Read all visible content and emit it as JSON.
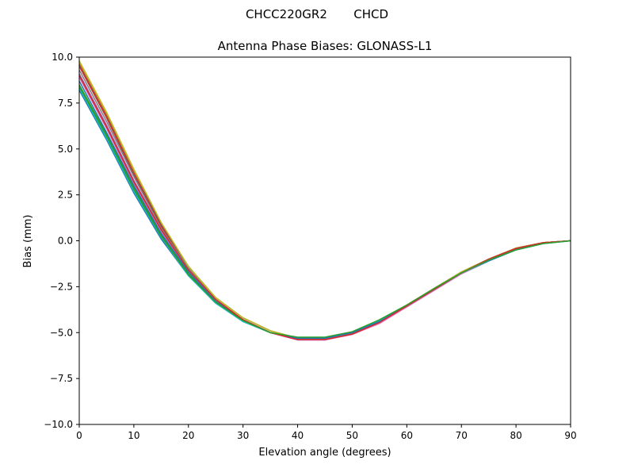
{
  "figure": {
    "suptitle": "CHCC220GR2       CHCD"
  },
  "chart_data": {
    "type": "line",
    "title": "Antenna Phase Biases: GLONASS-L1",
    "xlabel": "Elevation angle (degrees)",
    "ylabel": "Bias (mm)",
    "xlim": [
      0,
      90
    ],
    "ylim": [
      -10,
      10
    ],
    "xticks": [
      0,
      10,
      20,
      30,
      40,
      50,
      60,
      70,
      80,
      90
    ],
    "yticks": [
      -10.0,
      -7.5,
      -5.0,
      -2.5,
      0.0,
      2.5,
      5.0,
      7.5,
      10.0
    ],
    "ytick_labels": [
      "−10.0",
      "−7.5",
      "−5.0",
      "−2.5",
      "0.0",
      "2.5",
      "5.0",
      "7.5",
      "10.0"
    ],
    "grid": false,
    "x": [
      0,
      5,
      10,
      15,
      20,
      25,
      30,
      35,
      40,
      45,
      50,
      55,
      60,
      65,
      70,
      75,
      80,
      85,
      90
    ],
    "series": [
      {
        "color": "#1f77b4",
        "values": [
          8.2,
          5.5,
          2.6,
          0.1,
          -1.9,
          -3.4,
          -4.4,
          -5.0,
          -5.3,
          -5.3,
          -5.0,
          -4.4,
          -3.6,
          -2.7,
          -1.8,
          -1.1,
          -0.5,
          -0.15,
          0.0
        ]
      },
      {
        "color": "#ff7f0e",
        "values": [
          9.7,
          6.9,
          3.8,
          0.9,
          -1.4,
          -3.1,
          -4.2,
          -4.9,
          -5.3,
          -5.3,
          -5.0,
          -4.4,
          -3.5,
          -2.6,
          -1.7,
          -1.0,
          -0.4,
          -0.1,
          0.0
        ]
      },
      {
        "color": "#2ca02c",
        "values": [
          8.5,
          5.8,
          2.9,
          0.3,
          -1.8,
          -3.3,
          -4.3,
          -5.0,
          -5.3,
          -5.3,
          -5.0,
          -4.3,
          -3.5,
          -2.6,
          -1.7,
          -1.0,
          -0.45,
          -0.1,
          0.0
        ]
      },
      {
        "color": "#d62728",
        "values": [
          9.5,
          6.7,
          3.6,
          0.8,
          -1.5,
          -3.2,
          -4.3,
          -5.0,
          -5.35,
          -5.35,
          -5.05,
          -4.4,
          -3.5,
          -2.6,
          -1.7,
          -1.0,
          -0.4,
          -0.1,
          0.0
        ]
      },
      {
        "color": "#9467bd",
        "values": [
          9.1,
          6.3,
          3.3,
          0.6,
          -1.6,
          -3.2,
          -4.3,
          -5.0,
          -5.4,
          -5.4,
          -5.1,
          -4.5,
          -3.6,
          -2.7,
          -1.8,
          -1.05,
          -0.45,
          -0.1,
          0.0
        ]
      },
      {
        "color": "#8c564b",
        "values": [
          9.6,
          6.8,
          3.7,
          0.9,
          -1.4,
          -3.1,
          -4.2,
          -4.9,
          -5.3,
          -5.3,
          -5.0,
          -4.4,
          -3.5,
          -2.6,
          -1.7,
          -1.0,
          -0.4,
          -0.1,
          0.0
        ]
      },
      {
        "color": "#e377c2",
        "values": [
          8.9,
          6.1,
          3.1,
          0.5,
          -1.6,
          -3.2,
          -4.3,
          -5.0,
          -5.4,
          -5.4,
          -5.1,
          -4.5,
          -3.6,
          -2.7,
          -1.8,
          -1.05,
          -0.45,
          -0.1,
          0.0
        ]
      },
      {
        "color": "#7f7f7f",
        "values": [
          9.3,
          6.5,
          3.5,
          0.7,
          -1.5,
          -3.2,
          -4.3,
          -5.0,
          -5.35,
          -5.35,
          -5.05,
          -4.4,
          -3.5,
          -2.6,
          -1.7,
          -1.0,
          -0.4,
          -0.1,
          0.0
        ]
      },
      {
        "color": "#bcbd22",
        "values": [
          9.8,
          7.0,
          3.9,
          1.0,
          -1.4,
          -3.1,
          -4.2,
          -4.9,
          -5.3,
          -5.3,
          -5.0,
          -4.4,
          -3.5,
          -2.6,
          -1.7,
          -1.0,
          -0.4,
          -0.1,
          0.0
        ]
      },
      {
        "color": "#17becf",
        "values": [
          8.3,
          5.6,
          2.7,
          0.2,
          -1.9,
          -3.4,
          -4.4,
          -5.0,
          -5.3,
          -5.3,
          -5.0,
          -4.35,
          -3.55,
          -2.65,
          -1.75,
          -1.05,
          -0.5,
          -0.15,
          0.0
        ]
      },
      {
        "color": "#1f77b4",
        "values": [
          8.7,
          5.9,
          3.0,
          0.4,
          -1.7,
          -3.3,
          -4.3,
          -5.0,
          -5.3,
          -5.3,
          -5.0,
          -4.4,
          -3.55,
          -2.65,
          -1.75,
          -1.05,
          -0.45,
          -0.12,
          0.0
        ]
      },
      {
        "color": "#d62728",
        "values": [
          9.0,
          6.2,
          3.2,
          0.6,
          -1.6,
          -3.2,
          -4.3,
          -5.0,
          -5.38,
          -5.38,
          -5.08,
          -4.45,
          -3.55,
          -2.65,
          -1.75,
          -1.0,
          -0.42,
          -0.1,
          0.0
        ]
      },
      {
        "color": "#2ca02c",
        "values": [
          8.4,
          5.7,
          2.8,
          0.25,
          -1.85,
          -3.35,
          -4.35,
          -5.0,
          -5.25,
          -5.25,
          -4.95,
          -4.3,
          -3.5,
          -2.6,
          -1.75,
          -1.05,
          -0.5,
          -0.15,
          0.0
        ]
      }
    ]
  }
}
